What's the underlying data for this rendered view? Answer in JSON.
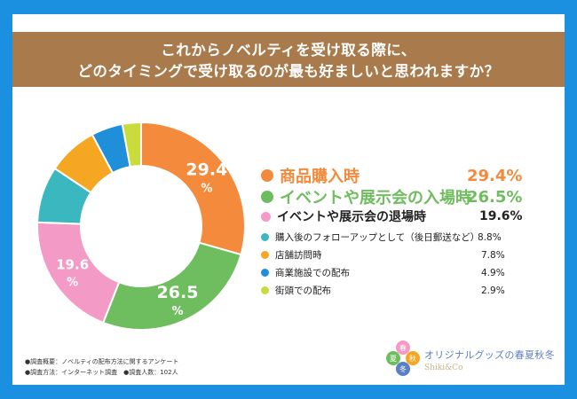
{
  "title": {
    "line1": "これからノベルティを受け取る際に、",
    "line2": "どのタイミングで受け取るのが最も好ましいと思われますか？"
  },
  "chart_data": {
    "type": "pie",
    "subtype": "donut",
    "categories": [
      "商品購入時",
      "イベントや展示会の入場時",
      "イベントや展示会の退場時",
      "購入後のフォローアップとして（後日郵送など）",
      "店舗訪問時",
      "商業施設での配布",
      "街頭での配布"
    ],
    "values": [
      29.4,
      26.5,
      19.6,
      8.8,
      7.8,
      4.9,
      2.9
    ],
    "labels": [
      "29.4%",
      "26.5%",
      "19.6%",
      "8.8%",
      "7.8%",
      "4.9%",
      "2.9%"
    ],
    "slice_labels": [
      {
        "num": "29.4",
        "unit": "%"
      },
      {
        "num": "26.5",
        "unit": "%"
      },
      {
        "num": "19.6",
        "unit": "%"
      }
    ],
    "colors": [
      "#f38a3c",
      "#6ebd5e",
      "#f49ac6",
      "#3bb8bf",
      "#f5a623",
      "#1e8fd8",
      "#c9dc3c"
    ],
    "legend_position": "right"
  },
  "legend_style": [
    "large-orange",
    "large-green",
    "medium",
    "small",
    "small",
    "small",
    "small"
  ],
  "notes": {
    "line1": "●調査概要：ノベルティの配布方法に関するアンケート",
    "line2": "●調査方法：インターネット調査　●調査人数：102人"
  },
  "logo": {
    "brand": "オリジナルグッズの春夏秋冬",
    "sub": "Shiki&Co",
    "badges": [
      "春",
      "夏",
      "秋",
      "冬"
    ]
  }
}
